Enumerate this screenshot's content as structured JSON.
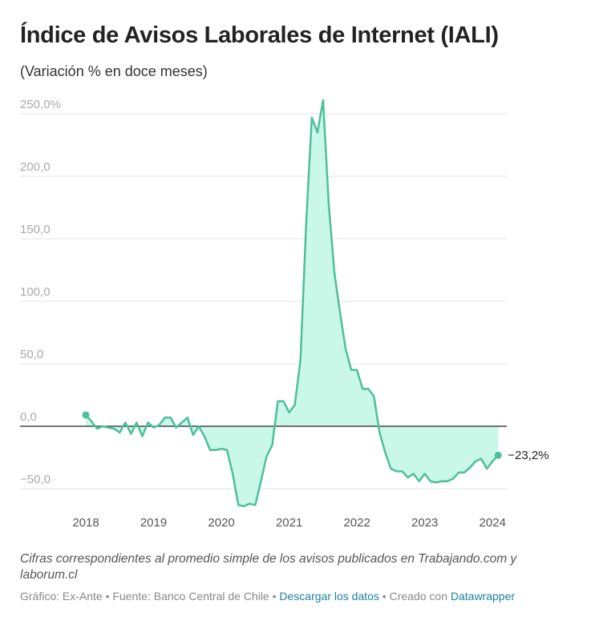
{
  "chart_data": {
    "type": "area-line",
    "title": "Índice de Avisos Laborales de Internet (IALI)",
    "subtitle": "(Variación % en doce meses)",
    "x": [
      2018,
      2018.083,
      2018.167,
      2018.25,
      2018.333,
      2018.417,
      2018.5,
      2018.583,
      2018.667,
      2018.75,
      2018.833,
      2018.917,
      2019,
      2019.083,
      2019.167,
      2019.25,
      2019.333,
      2019.417,
      2019.5,
      2019.583,
      2019.667,
      2019.75,
      2019.833,
      2019.917,
      2020,
      2020.083,
      2020.167,
      2020.25,
      2020.333,
      2020.417,
      2020.5,
      2020.583,
      2020.667,
      2020.75,
      2020.833,
      2020.917,
      2021,
      2021.083,
      2021.167,
      2021.25,
      2021.333,
      2021.417,
      2021.5,
      2021.583,
      2021.667,
      2021.75,
      2021.833,
      2021.917,
      2022,
      2022.083,
      2022.167,
      2022.25,
      2022.333,
      2022.417,
      2022.5,
      2022.583,
      2022.667,
      2022.75,
      2022.833,
      2022.917,
      2023,
      2023.083,
      2023.167,
      2023.25,
      2023.333,
      2023.417,
      2023.5,
      2023.583,
      2023.667,
      2023.75,
      2023.833,
      2023.917,
      2024,
      2024.083
    ],
    "series": [
      {
        "color": "#4dbf9c",
        "fill": "#c9f7e8",
        "values": [
          9,
          4,
          -2,
          0,
          -1,
          -2,
          -5,
          3,
          -6,
          3,
          -8,
          3,
          -1,
          1,
          7,
          7,
          -1,
          3,
          7,
          -7,
          0,
          -8,
          -19,
          -19,
          -18,
          -19,
          -38,
          -63,
          -64,
          -62,
          -63,
          -44,
          -24,
          -15,
          20,
          20,
          11,
          17,
          53,
          162,
          247,
          235,
          261,
          178,
          123,
          91,
          62,
          45,
          45,
          30,
          30,
          24,
          -5,
          -21,
          -34,
          -36,
          -36,
          -41,
          -38,
          -44,
          -38,
          -44,
          -45,
          -44,
          -44,
          -42,
          -37,
          -37,
          -33,
          -28,
          -26,
          -34,
          -28,
          -23.2
        ],
        "value_labels": [
          null,
          null,
          null,
          null,
          null,
          null,
          null,
          null,
          null,
          null,
          null,
          null,
          null,
          null,
          null,
          null,
          null,
          null,
          null,
          null,
          null,
          null,
          null,
          null,
          null,
          null,
          null,
          null,
          null,
          null,
          null,
          null,
          null,
          null,
          null,
          null,
          null,
          null,
          null,
          null,
          null,
          null,
          null,
          null,
          null,
          null,
          null,
          null,
          null,
          null,
          null,
          null,
          null,
          null,
          null,
          null,
          null,
          null,
          null,
          null,
          null,
          null,
          null,
          null,
          null,
          null,
          null,
          null,
          null,
          null,
          null,
          null,
          null,
          "−23,2%"
        ]
      }
    ],
    "xlim": [
      2017.03,
      2024.21
    ],
    "xticks": [
      2018,
      2019,
      2020,
      2021,
      2022,
      2023,
      2024
    ],
    "ylim": [
      -70,
      260
    ],
    "yticks": [
      {
        "value": -50,
        "label": "−50,0"
      },
      {
        "value": 0,
        "label": "0,0"
      },
      {
        "value": 50,
        "label": "50,0"
      },
      {
        "value": 100,
        "label": "100,0"
      },
      {
        "value": 150,
        "label": "150,0"
      },
      {
        "value": 200,
        "label": "200,0"
      },
      {
        "value": 250,
        "label": "250,0%"
      }
    ],
    "grid": true,
    "zero_line": true
  },
  "footer": {
    "note": "Cifras correspondientes al promedio simple de los avisos publicados en Trabajando.com y laborum.cl",
    "byline": [
      "Gráfico: Ex-Ante • Fuente: Banco Central de Chile • ",
      "Descargar los datos",
      " • Creado con ",
      "Datawrapper"
    ]
  }
}
